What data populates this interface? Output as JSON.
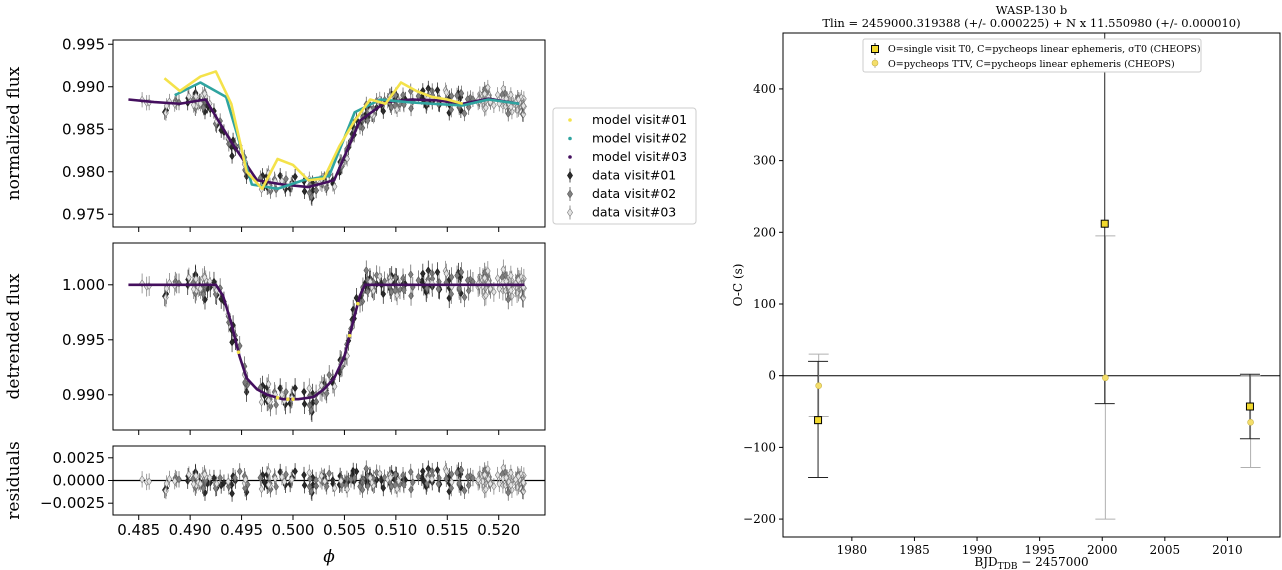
{
  "chart_data": [
    {
      "type": "scatter",
      "xlabel": "ϕ",
      "x_ticks": [
        "0.485",
        "0.490",
        "0.495",
        "0.500",
        "0.505",
        "0.510",
        "0.515",
        "0.520"
      ],
      "xlim": [
        0.4825,
        0.5245
      ],
      "legend": {
        "placement": "outside-right",
        "entries": [
          "model visit#01",
          "model visit#02",
          "model visit#03",
          "data visit#01",
          "data visit#02",
          "data visit#03"
        ]
      },
      "colors": {
        "visit01": "#2b2b2b",
        "visit02": "#808080",
        "visit03": "#e3e3e3",
        "model01": "#f4e24a",
        "model02": "#2fa4a0",
        "model03": "#440f5e"
      },
      "panels": [
        {
          "name": "normalized",
          "ylabel": "normalized flux",
          "ylim": [
            0.9735,
            0.9955
          ],
          "y_ticks": [
            "0.995",
            "0.990",
            "0.985",
            "0.980",
            "0.975"
          ],
          "model_visit01": {
            "x": [
              0.4875,
              0.489,
              0.491,
              0.4925,
              0.494,
              0.4955,
              0.497,
              0.4985,
              0.5,
              0.5015,
              0.503,
              0.5045,
              0.506,
              0.5075,
              0.509,
              0.5105,
              0.512,
              0.5135,
              0.515,
              0.5165
            ],
            "y": [
              0.991,
              0.9895,
              0.9912,
              0.9918,
              0.988,
              0.98,
              0.978,
              0.9815,
              0.9808,
              0.979,
              0.9792,
              0.983,
              0.986,
              0.9885,
              0.988,
              0.9905,
              0.9895,
              0.9888,
              0.9885,
              0.988
            ]
          },
          "model_visit02": {
            "x": [
              0.4885,
              0.491,
              0.4935,
              0.496,
              0.4985,
              0.501,
              0.5035,
              0.506,
              0.5085,
              0.511,
              0.5135,
              0.5165,
              0.519,
              0.522
            ],
            "y": [
              0.989,
              0.9905,
              0.9888,
              0.9785,
              0.978,
              0.979,
              0.9795,
              0.987,
              0.9885,
              0.9882,
              0.988,
              0.9878,
              0.9885,
              0.988
            ]
          },
          "model_visit03": {
            "x": [
              0.484,
              0.4865,
              0.489,
              0.4915,
              0.494,
              0.4965,
              0.499,
              0.5015,
              0.504,
              0.5065,
              0.509,
              0.5115,
              0.514,
              0.5165,
              0.519,
              0.522
            ],
            "y": [
              0.9885,
              0.9882,
              0.988,
              0.9885,
              0.9835,
              0.979,
              0.9785,
              0.9782,
              0.979,
              0.986,
              0.9882,
              0.9885,
              0.9884,
              0.988,
              0.9886,
              0.988
            ]
          }
        },
        {
          "name": "detrended",
          "ylabel": "detrended flux",
          "ylim": [
            0.9868,
            1.0038
          ],
          "y_ticks": [
            "1.000",
            "0.995",
            "0.990"
          ],
          "model": {
            "x": [
              0.484,
              0.4925,
              0.4932,
              0.494,
              0.4948,
              0.4955,
              0.4965,
              0.4975,
              0.499,
              0.5005,
              0.502,
              0.503,
              0.504,
              0.505,
              0.5058,
              0.5065,
              0.507,
              0.5225
            ],
            "y": [
              1.0,
              1.0,
              0.999,
              0.9965,
              0.9935,
              0.9915,
              0.9905,
              0.99,
              0.9896,
              0.9896,
              0.9898,
              0.9905,
              0.9915,
              0.9935,
              0.9965,
              0.999,
              1.0,
              1.0
            ]
          }
        },
        {
          "name": "residuals",
          "ylabel": "residuals",
          "ylim": [
            -0.0038,
            0.0038
          ],
          "y_ticks": [
            "0.0025",
            "0.0000",
            "−0.0025"
          ]
        }
      ]
    },
    {
      "type": "scatter",
      "title": "WASP-130 b",
      "subtitle": "Tlin = 2459000.319388 (+/- 0.000225) + N x 11.550980 (+/- 0.000010)",
      "xlabel": "BJD",
      "xlabel_sub": "TDB",
      "xlabel_rest": " − 2457000",
      "ylabel": "O-C (s)",
      "xlim": [
        1974.5,
        2014.2
      ],
      "ylim": [
        -225,
        478
      ],
      "x_ticks": [
        "1980",
        "1985",
        "1990",
        "1995",
        "2000",
        "2005",
        "2010"
      ],
      "y_ticks": [
        "400",
        "300",
        "200",
        "100",
        "0",
        "−100",
        "−200"
      ],
      "legend": {
        "placement": "top-center",
        "entries": [
          "O=single visit T0, C=pycheops linear ephemeris, σT0 (CHEOPS)",
          "O=pycheops TTV, C=pycheops linear ephemeris (CHEOPS)"
        ]
      },
      "series": [
        {
          "name": "O=single visit T0, C=pycheops linear ephemeris, σT0 (CHEOPS)",
          "points": [
            {
              "x": 1977.3,
              "y": -62,
              "err_low": -142,
              "err_high": 20
            },
            {
              "x": 2000.2,
              "y": 212,
              "err_low": -39,
              "err_high": 478
            },
            {
              "x": 2011.8,
              "y": -43,
              "err_low": -88,
              "err_high": 2
            }
          ]
        },
        {
          "name": "O=pycheops TTV, C=pycheops linear ephemeris (CHEOPS)",
          "points": [
            {
              "x": 1977.3,
              "y": -14,
              "err_low": -57,
              "err_high": 30
            },
            {
              "x": 2000.2,
              "y": -3,
              "err_low": -200,
              "err_high": 195
            },
            {
              "x": 2011.8,
              "y": -65,
              "err_low": -128,
              "err_high": 0
            }
          ]
        }
      ]
    }
  ]
}
